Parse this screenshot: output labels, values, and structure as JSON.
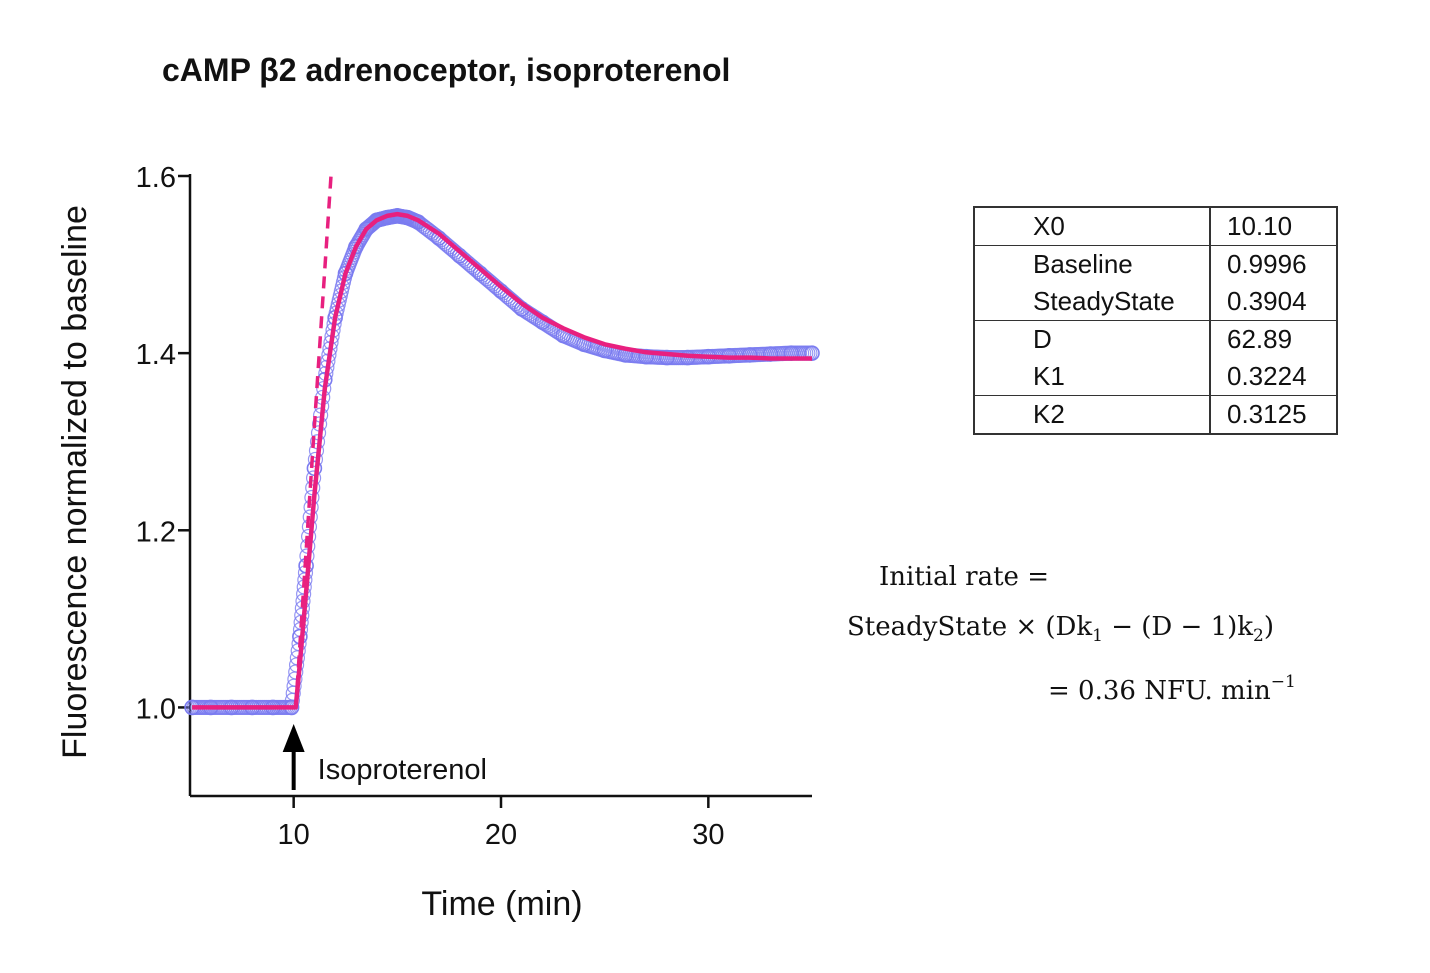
{
  "title": "cAMP β2 adrenoceptor, isoproterenol",
  "colors": {
    "data_points": "#7b7cf0",
    "fit_line": "#e8207f",
    "axis": "#111111",
    "arrow": "#000000"
  },
  "chart_data": {
    "type": "scatter",
    "xlabel": "Time (min)",
    "ylabel": "Fluorescence normalized to baseline",
    "xlim": [
      5,
      35
    ],
    "ylim": [
      0.9,
      1.6
    ],
    "x_ticks": [
      "10",
      "20",
      "30"
    ],
    "y_ticks": [
      "1.0",
      "1.2",
      "1.4",
      "1.6"
    ],
    "annotation": {
      "text": "Isoproterenol",
      "x": 10,
      "symbol": "up-arrow"
    },
    "data_points": {
      "marker": "open-circle",
      "x": [
        5.1,
        6,
        7,
        8,
        9,
        9.9,
        10.3,
        10.6,
        11,
        11.5,
        12,
        12.5,
        13,
        13.5,
        14,
        14.5,
        15,
        15.5,
        16,
        17,
        18,
        19,
        20,
        21,
        22,
        23,
        24,
        25,
        26,
        27,
        28,
        29,
        30,
        31,
        32,
        33,
        34,
        35
      ],
      "y": [
        1.0,
        1.0,
        1.0,
        1.0,
        1.0,
        1.0,
        1.08,
        1.16,
        1.27,
        1.37,
        1.44,
        1.49,
        1.52,
        1.54,
        1.55,
        1.553,
        1.555,
        1.553,
        1.548,
        1.53,
        1.51,
        1.49,
        1.47,
        1.45,
        1.435,
        1.42,
        1.41,
        1.403,
        1.398,
        1.396,
        1.395,
        1.395,
        1.396,
        1.397,
        1.398,
        1.399,
        1.4,
        1.4
      ]
    },
    "fit_curve": {
      "style": "solid",
      "x": [
        5.1,
        6,
        7,
        8,
        9,
        10.1,
        10.3,
        10.6,
        11,
        11.5,
        12,
        12.5,
        13,
        13.5,
        14,
        14.5,
        15,
        15.5,
        16,
        17,
        18,
        19,
        20,
        21,
        22,
        23,
        24,
        25,
        26,
        27,
        28,
        29,
        30,
        31,
        32,
        33,
        34,
        35
      ],
      "y": [
        1.0,
        1.0,
        1.0,
        1.0,
        1.0,
        1.0,
        1.05,
        1.13,
        1.24,
        1.36,
        1.44,
        1.49,
        1.52,
        1.54,
        1.55,
        1.555,
        1.557,
        1.555,
        1.55,
        1.535,
        1.515,
        1.495,
        1.475,
        1.456,
        1.44,
        1.428,
        1.418,
        1.41,
        1.405,
        1.401,
        1.399,
        1.397,
        1.396,
        1.395,
        1.395,
        1.394,
        1.394,
        1.394
      ]
    },
    "initial_rate_line": {
      "style": "dashed",
      "x": [
        10.1,
        11.8
      ],
      "y": [
        1.0,
        1.6
      ]
    }
  },
  "parameters": {
    "rows": [
      {
        "name": "X0",
        "value": "10.10",
        "group_start": false
      },
      {
        "name": "Baseline",
        "value": "0.9996",
        "group_start": true
      },
      {
        "name": "SteadyState",
        "value": "0.3904",
        "group_start": false
      },
      {
        "name": "D",
        "value": "62.89",
        "group_start": true
      },
      {
        "name": "K1",
        "value": "0.3224",
        "group_start": false
      },
      {
        "name": "K2",
        "value": "0.3125",
        "group_start": true
      }
    ]
  },
  "equation": {
    "line1": "Initial rate =",
    "line2_a": "SteadyState  ×  (Dk",
    "line2_sub1": "1",
    "line2_b": " − (D − 1)k",
    "line2_sub2": "2",
    "line2_c": ")",
    "line3_a": "= 0.36 NFU. min",
    "line3_sup": "−1"
  }
}
